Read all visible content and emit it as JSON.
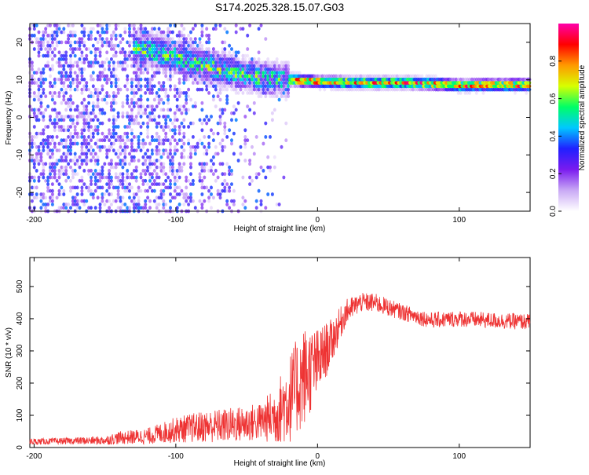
{
  "title": "S174.2025.328.15.07.G03",
  "chart_data": [
    {
      "type": "heatmap",
      "xlabel": "Height of straight line (km)",
      "ylabel": "Frequency (Hz)",
      "xlim": [
        -203,
        150
      ],
      "ylim": [
        -25,
        25
      ],
      "xticks": [
        -200,
        -100,
        0,
        100
      ],
      "yticks": [
        -20,
        -10,
        0,
        10,
        20
      ],
      "colorbar": {
        "label": "Normalized spectral amplitude",
        "range": [
          0,
          1
        ],
        "ticks": [
          "0.0",
          "0.2",
          "0.4",
          "0.6",
          "0.8"
        ],
        "tick_values": [
          0.0,
          0.2,
          0.4,
          0.6,
          0.8
        ],
        "colors": [
          "#ffffff",
          "#c9a9f5",
          "#7a1bef",
          "#2020ff",
          "#00c8ff",
          "#00ff66",
          "#d8ff00",
          "#ff9900",
          "#ff0000",
          "#ff00aa"
        ]
      },
      "ridge": {
        "description_free": true,
        "x": [
          -120,
          -100,
          -80,
          -60,
          -40,
          -20,
          0,
          20,
          40,
          60,
          80,
          100,
          120,
          150
        ],
        "y": [
          18,
          16,
          14,
          12,
          10.5,
          10,
          9.5,
          9.3,
          9.2,
          9.2,
          9.0,
          8.5,
          8.6,
          8.6
        ]
      }
    },
    {
      "type": "line",
      "xlabel": "Height of straight line (km)",
      "ylabel": "SNR (10 * v/v)",
      "xlim": [
        -203,
        150
      ],
      "ylim": [
        0,
        590
      ],
      "xticks": [
        -200,
        -100,
        0,
        100
      ],
      "yticks": [
        0,
        100,
        200,
        300,
        400,
        500
      ],
      "color": "#ee3333",
      "envelope": {
        "x": [
          -203,
          -180,
          -150,
          -140,
          -120,
          -100,
          -80,
          -60,
          -40,
          -30,
          -20,
          -10,
          0,
          10,
          20,
          30,
          40,
          60,
          80,
          100,
          120,
          150
        ],
        "mean": [
          18,
          20,
          22,
          30,
          35,
          55,
          65,
          70,
          80,
          100,
          150,
          220,
          260,
          330,
          420,
          450,
          450,
          420,
          395,
          400,
          395,
          390
        ],
        "spread": [
          10,
          10,
          14,
          20,
          25,
          40,
          50,
          55,
          60,
          90,
          140,
          160,
          110,
          70,
          40,
          30,
          30,
          25,
          25,
          25,
          25,
          25
        ]
      }
    }
  ]
}
